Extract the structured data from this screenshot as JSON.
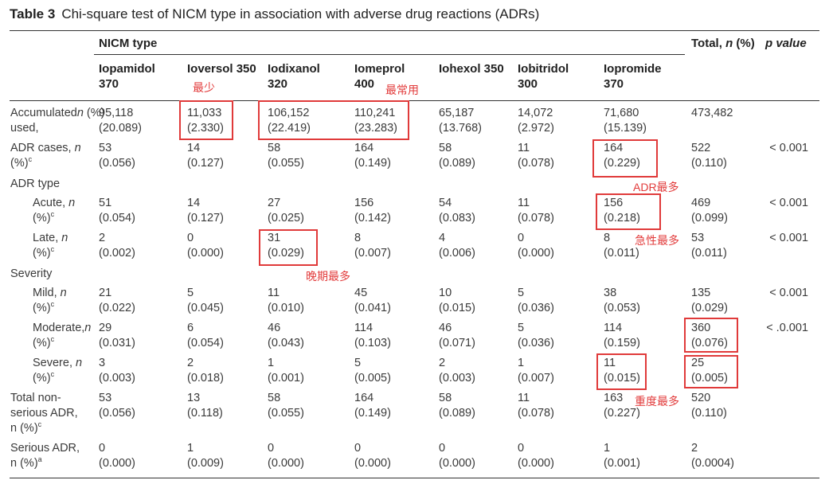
{
  "title": {
    "label": "Table 3",
    "text": "Chi-square test of NICM type in association with adverse drug reactions (ADRs)"
  },
  "header": {
    "group": "NICM type",
    "total_prefix": "Total, ",
    "total_n": "n",
    "total_suffix": " (%)",
    "p_value": "p value",
    "columns": [
      [
        "Iopamidol",
        "370"
      ],
      [
        "Ioversol 350",
        ""
      ],
      [
        "Iodixanol",
        "320"
      ],
      [
        "Iomeprol",
        "400"
      ],
      [
        "Iohexol 350",
        ""
      ],
      [
        "Iobitridol",
        "300"
      ],
      [
        "Iopromide",
        "370"
      ]
    ]
  },
  "rows": [
    {
      "label": [
        "Accumulated",
        "used, "
      ],
      "label_n": "n",
      "label_tail": " (%)",
      "sup": "",
      "indent": false,
      "values": [
        [
          "95,118",
          "(20.089)"
        ],
        [
          "11,033",
          "(2.330)"
        ],
        [
          "106,152",
          "(22.419)"
        ],
        [
          "110,241",
          "(23.283)"
        ],
        [
          "65,187",
          "(13.768)"
        ],
        [
          "14,072",
          "(2.972)"
        ],
        [
          "71,680",
          "(15.139)"
        ]
      ],
      "total": [
        "473,482",
        ""
      ],
      "p": ""
    },
    {
      "label": [
        "ADR cases, ",
        "(%)"
      ],
      "label_n": "n",
      "label_tail": "",
      "sup": "c",
      "indent": false,
      "values": [
        [
          "53",
          "(0.056)"
        ],
        [
          "14",
          "(0.127)"
        ],
        [
          "58",
          "(0.055)"
        ],
        [
          "164",
          "(0.149)"
        ],
        [
          "58",
          "(0.089)"
        ],
        [
          "11",
          "(0.078)"
        ],
        [
          "164",
          "(0.229)"
        ]
      ],
      "total": [
        "522",
        "(0.110)"
      ],
      "p": "< 0.001"
    },
    {
      "section": "ADR type"
    },
    {
      "label": [
        "Acute, ",
        "(%)"
      ],
      "label_n": "n",
      "label_tail": "",
      "sup": "c",
      "indent": true,
      "values": [
        [
          "51",
          "(0.054)"
        ],
        [
          "14",
          "(0.127)"
        ],
        [
          "27",
          "(0.025)"
        ],
        [
          "156",
          "(0.142)"
        ],
        [
          "54",
          "(0.083)"
        ],
        [
          "11",
          "(0.078)"
        ],
        [
          "156",
          "(0.218)"
        ]
      ],
      "total": [
        "469",
        "(0.099)"
      ],
      "p": "< 0.001"
    },
    {
      "label": [
        "Late, ",
        "(%)"
      ],
      "label_n": "n",
      "label_tail": "",
      "sup": "c",
      "indent": true,
      "values": [
        [
          "2",
          "(0.002)"
        ],
        [
          "0",
          "(0.000)"
        ],
        [
          "31",
          "(0.029)"
        ],
        [
          "8",
          "(0.007)"
        ],
        [
          "4",
          "(0.006)"
        ],
        [
          "0",
          "(0.000)"
        ],
        [
          "8",
          "(0.011)"
        ]
      ],
      "total": [
        "53",
        "(0.011)"
      ],
      "p": "< 0.001"
    },
    {
      "section": "Severity"
    },
    {
      "label": [
        "Mild, ",
        "(%)"
      ],
      "label_n": "n",
      "label_tail": "",
      "sup": "c",
      "indent": true,
      "values": [
        [
          "21",
          "(0.022)"
        ],
        [
          "5",
          "(0.045)"
        ],
        [
          "11",
          "(0.010)"
        ],
        [
          "45",
          "(0.041)"
        ],
        [
          "10",
          "(0.015)"
        ],
        [
          "5",
          "(0.036)"
        ],
        [
          "38",
          "(0.053)"
        ]
      ],
      "total": [
        "135",
        "(0.029)"
      ],
      "p": "< 0.001"
    },
    {
      "label": [
        "Moderate,",
        " (%)"
      ],
      "label_n": "n",
      "label_tail": "",
      "sup": "c",
      "indent": true,
      "values": [
        [
          "29",
          "(0.031)"
        ],
        [
          "6",
          "(0.054)"
        ],
        [
          "46",
          "(0.043)"
        ],
        [
          "114",
          "(0.103)"
        ],
        [
          "46",
          "(0.071)"
        ],
        [
          "5",
          "(0.036)"
        ],
        [
          "114",
          "(0.159)"
        ]
      ],
      "total": [
        "360",
        "(0.076)"
      ],
      "p": "< .0.001"
    },
    {
      "label": [
        "Severe, ",
        "(%)"
      ],
      "label_n": "n",
      "label_tail": "",
      "sup": "c",
      "indent": true,
      "values": [
        [
          "3",
          "(0.003)"
        ],
        [
          "2",
          "(0.018)"
        ],
        [
          "1",
          "(0.001)"
        ],
        [
          "5",
          "(0.005)"
        ],
        [
          "2",
          "(0.003)"
        ],
        [
          "1",
          "(0.007)"
        ],
        [
          "11",
          "(0.015)"
        ]
      ],
      "total": [
        "25",
        "(0.005)"
      ],
      "p": ""
    },
    {
      "label": [
        "Total non-",
        "serious ADR,",
        "n (%)"
      ],
      "label_n": "",
      "label_tail": "",
      "sup": "c",
      "indent": false,
      "values": [
        [
          "53",
          "(0.056)"
        ],
        [
          "13",
          "(0.118)"
        ],
        [
          "58",
          "(0.055)"
        ],
        [
          "164",
          "(0.149)"
        ],
        [
          "58",
          "(0.089)"
        ],
        [
          "11",
          "(0.078)"
        ],
        [
          "163",
          "(0.227)"
        ]
      ],
      "total": [
        "520",
        "(0.110)"
      ],
      "p": ""
    },
    {
      "label": [
        "Serious ADR,",
        "n (%)"
      ],
      "label_n": "",
      "label_tail": "",
      "sup": "a",
      "indent": false,
      "values": [
        [
          "0",
          "(0.000)"
        ],
        [
          "1",
          "(0.009)"
        ],
        [
          "0",
          "(0.000)"
        ],
        [
          "0",
          "(0.000)"
        ],
        [
          "0",
          "(0.000)"
        ],
        [
          "0",
          "(0.000)"
        ],
        [
          "1",
          "(0.001)"
        ]
      ],
      "total": [
        "2",
        "(0.0004)"
      ],
      "p": ""
    }
  ],
  "annotations": {
    "least": "最少",
    "most_used": "最常用",
    "adr_most": "ADR最多",
    "acute_most": "急性最多",
    "late_most": "晚期最多",
    "severe_most": "重度最多"
  },
  "colors": {
    "highlight": "#e03a3a",
    "annotation": "#e23b3b"
  }
}
